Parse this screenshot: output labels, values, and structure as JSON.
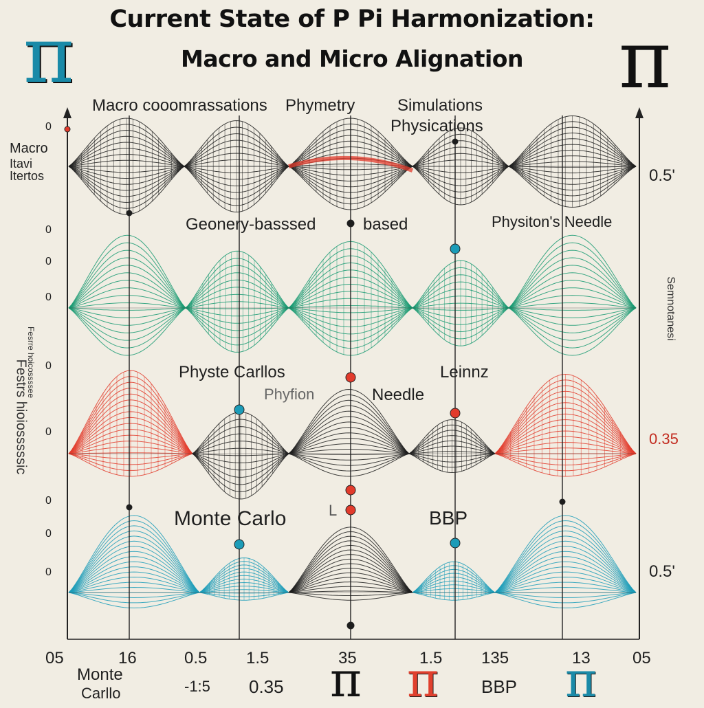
{
  "title": {
    "line1": "Current State of P Pi Harmonization:",
    "line2": "Macro and Micro Alignation"
  },
  "pi_symbol": "π",
  "colors": {
    "background": "#f1ede3",
    "black": "#1d1d1d",
    "green": "#199a72",
    "red": "#e23b2c",
    "teal": "#1c9cb8",
    "pi_blue": "#1a8aa8"
  },
  "labels": {
    "macro_comparisons": "Macro cooomrassations",
    "phymetry": "Phymetry",
    "simulations": "Simulations",
    "physications": "Physications",
    "geometry_based": "Geonery-basssed",
    "based": "based",
    "physitons_needle": "Physiton's Needle",
    "physte_carllos": "Physte Carllos",
    "phyton": "Phyfion",
    "needle": "Needle",
    "leinnz": "Leinnz",
    "monte_carlo": "Monte Carlo",
    "small_l": "L",
    "bbp": "BBP"
  },
  "left_labels": {
    "macro": "Macro",
    "line2": "Itavi",
    "line3": "Itertos"
  },
  "left_vertical_text": "Festrs hioiosssssic",
  "left_small_vertical": "Fesrre hoicossssee",
  "right_vertical_text": "Semnotanesi",
  "right_values": {
    "top": "0.5'",
    "middle": "0.35",
    "bottom": "0.5'"
  },
  "axis_ticks": [
    "05",
    "16",
    "0.5",
    "1.5",
    "35",
    "1.5",
    "135",
    "13",
    "05"
  ],
  "left_ticks": [
    "0",
    "0",
    "0",
    "0",
    "0",
    "0",
    "0",
    "0",
    "0"
  ],
  "bottom_labels": {
    "monte": "Monte",
    "carlo": "Carllo",
    "minus": "-1:5",
    "value": "0.35",
    "bbp": "BBP"
  }
}
